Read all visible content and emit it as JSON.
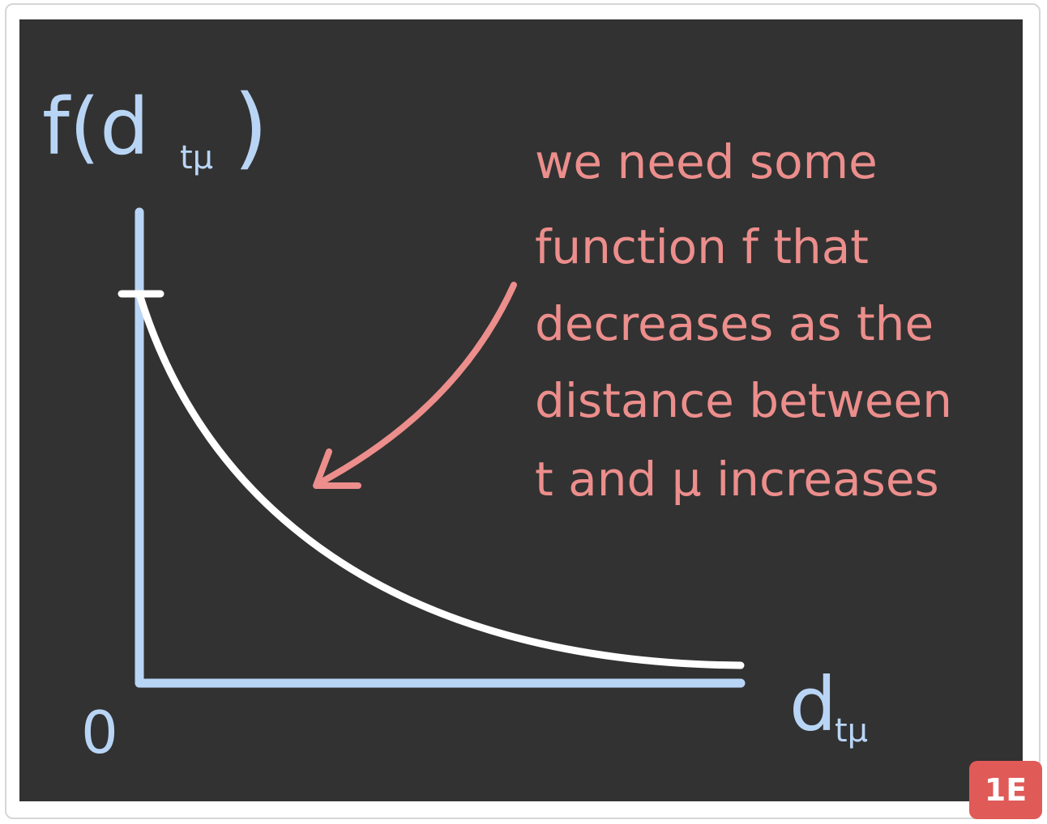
{
  "labels": {
    "y_axis": "f(d",
    "y_axis_sub": "tμ",
    "y_axis_close": ")",
    "x_axis": "d",
    "x_axis_sub": "tμ",
    "origin": "0"
  },
  "annotation": {
    "lines": [
      "we need some",
      "function f that",
      "decreases as the",
      "distance between",
      "t and μ increases"
    ]
  },
  "badge": "1E",
  "colors": {
    "board": "#323232",
    "axis": "#b9d5f5",
    "curve": "#ffffff",
    "annotation": "#ec8e8c",
    "badge": "#e05a58"
  }
}
